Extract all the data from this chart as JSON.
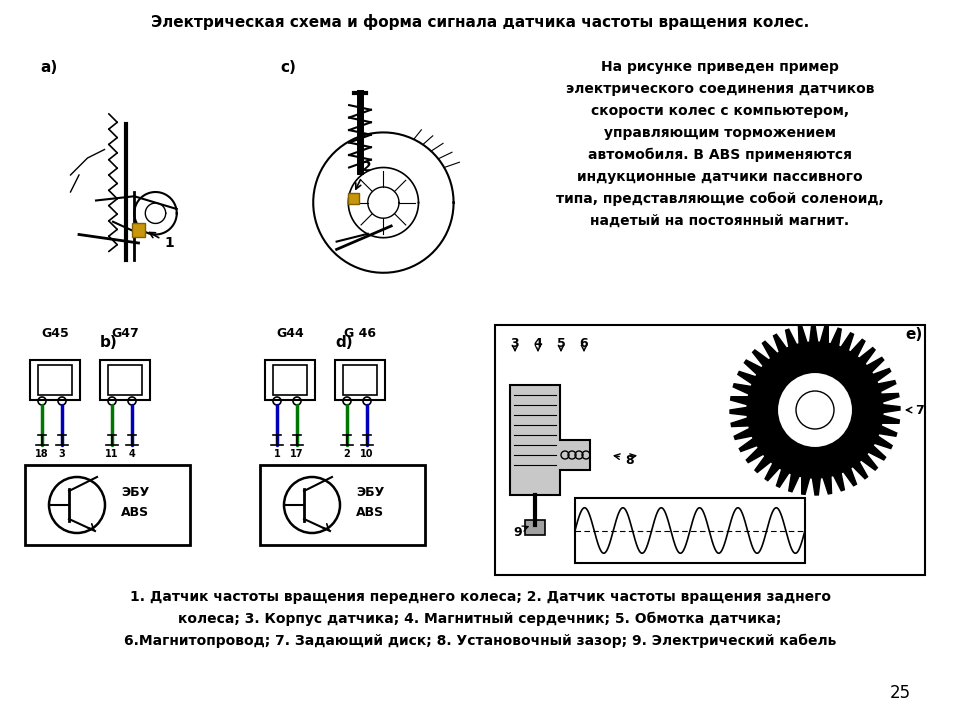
{
  "title": "Электрическая схема и форма сигнала датчика частоты вращения колес.",
  "description_lines": [
    "На рисунке приведен пример",
    "электрического соединения датчиков",
    "скорости колес с компьютером,",
    "управляющим торможением",
    "автомобиля. В ABS применяются",
    "индукционные датчики пассивного",
    "типа, представляющие собой соленоид,",
    "надетый на постоянный магнит."
  ],
  "caption_lines": [
    "1. Датчик частоты вращения переднего колеса; 2. Датчик частоты вращения заднего",
    "колеса; 3. Корпус датчика; 4. Магнитный сердечник; 5. Обмотка датчика;",
    "6.Магнитопровод; 7. Задающий диск; 8. Установочный зазор; 9. Электрический кабель"
  ],
  "page_number": "25",
  "bg_color": "#ffffff",
  "text_color": "#000000",
  "green_color": "#007700",
  "blue_color": "#0000bb",
  "gray_color": "#888888",
  "light_gray": "#cccccc",
  "yellow_color": "#c8960c"
}
